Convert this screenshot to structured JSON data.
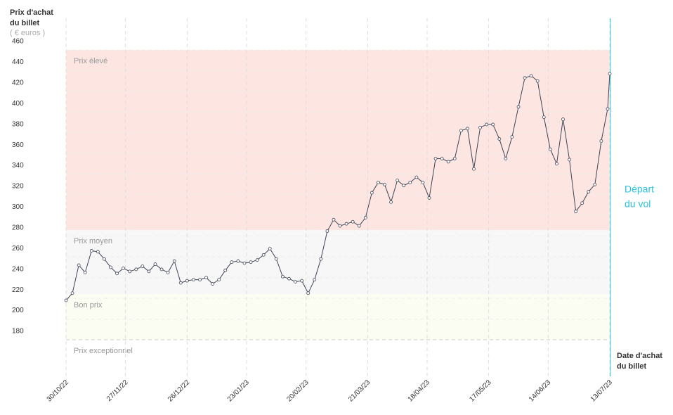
{
  "chart_data": {
    "type": "line",
    "ylabel": [
      "Prix d'achat",
      "du billet"
    ],
    "yunit": "( € euros )",
    "xlabel": [
      "Date d'achat",
      "du billet"
    ],
    "annotation": [
      "Départ",
      "du vol"
    ],
    "ylim": [
      160,
      460
    ],
    "yticks": [
      180,
      200,
      220,
      240,
      260,
      280,
      300,
      320,
      340,
      360,
      380,
      400,
      420,
      440,
      460
    ],
    "xlim": [
      "2022-10-30",
      "2023-07-13"
    ],
    "xticks": [
      {
        "value": "2022-10-30",
        "label": "30/10/22"
      },
      {
        "value": "2022-11-27",
        "label": "27/11/22"
      },
      {
        "value": "2022-12-26",
        "label": "26/12/22"
      },
      {
        "value": "2023-01-23",
        "label": "23/01/23"
      },
      {
        "value": "2023-02-20",
        "label": "20/02/23"
      },
      {
        "value": "2023-03-21",
        "label": "21/03/23"
      },
      {
        "value": "2023-04-18",
        "label": "18/04/23"
      },
      {
        "value": "2023-05-17",
        "label": "17/05/23"
      },
      {
        "value": "2023-06-14",
        "label": "14/06/23"
      },
      {
        "value": "2023-07-13",
        "label": "13/07/23"
      }
    ],
    "zones": [
      {
        "label": "Prix élevé",
        "from": 286,
        "to": 460,
        "color": "#fde6e1"
      },
      {
        "label": "Prix moyen",
        "from": 224,
        "to": 286,
        "color": "#f7f7f7"
      },
      {
        "label": "Bon prix",
        "from": 180,
        "to": 224,
        "color": "#fbfcf2"
      },
      {
        "label": "Prix exceptionnel",
        "from": 160,
        "to": 180,
        "color": "#ffffff"
      }
    ],
    "x": [
      "2022-10-30",
      "2022-11-02",
      "2022-11-05",
      "2022-11-08",
      "2022-11-11",
      "2022-11-14",
      "2022-11-17",
      "2022-11-20",
      "2022-11-23",
      "2022-11-26",
      "2022-11-29",
      "2022-12-02",
      "2022-12-05",
      "2022-12-08",
      "2022-12-11",
      "2022-12-14",
      "2022-12-17",
      "2022-12-20",
      "2022-12-23",
      "2022-12-26",
      "2022-12-29",
      "2023-01-01",
      "2023-01-04",
      "2023-01-07",
      "2023-01-10",
      "2023-01-13",
      "2023-01-16",
      "2023-01-19",
      "2023-01-22",
      "2023-01-25",
      "2023-01-28",
      "2023-01-31",
      "2023-02-03",
      "2023-02-06",
      "2023-02-09",
      "2023-02-12",
      "2023-02-15",
      "2023-02-18",
      "2023-02-21",
      "2023-02-24",
      "2023-02-27",
      "2023-03-02",
      "2023-03-05",
      "2023-03-08",
      "2023-03-11",
      "2023-03-14",
      "2023-03-17",
      "2023-03-20",
      "2023-03-23",
      "2023-03-26",
      "2023-03-29",
      "2023-04-01",
      "2023-04-04",
      "2023-04-07",
      "2023-04-10",
      "2023-04-13",
      "2023-04-16",
      "2023-04-19",
      "2023-04-22",
      "2023-04-25",
      "2023-04-28",
      "2023-05-01",
      "2023-05-04",
      "2023-05-07",
      "2023-05-10",
      "2023-05-13",
      "2023-05-16",
      "2023-05-19",
      "2023-05-22",
      "2023-05-25",
      "2023-05-28",
      "2023-05-31",
      "2023-06-03",
      "2023-06-06",
      "2023-06-09",
      "2023-06-12",
      "2023-06-15",
      "2023-06-18",
      "2023-06-21",
      "2023-06-24",
      "2023-06-27",
      "2023-06-30",
      "2023-07-03",
      "2023-07-06",
      "2023-07-09",
      "2023-07-12",
      "2023-07-13"
    ],
    "series": [
      {
        "color": "#3d4357",
        "values": [
          218,
          225,
          252,
          245,
          266,
          265,
          258,
          250,
          244,
          249,
          246,
          248,
          251,
          246,
          253,
          248,
          245,
          256,
          235,
          237,
          238,
          238,
          240,
          234,
          238,
          247,
          255,
          256,
          254,
          255,
          257,
          262,
          268,
          258,
          241,
          239,
          236,
          237,
          225,
          238,
          258,
          285,
          296,
          290,
          292,
          294,
          290,
          298,
          322,
          332,
          330,
          313,
          334,
          329,
          332,
          337,
          332,
          317,
          355,
          355,
          352,
          355,
          382,
          384,
          345,
          385,
          388,
          388,
          374,
          355,
          376,
          405,
          433,
          435,
          430,
          395,
          364,
          350,
          393,
          354,
          304,
          312,
          323,
          330,
          372,
          403,
          437
        ]
      }
    ],
    "depart_color": "#2cc3de"
  }
}
